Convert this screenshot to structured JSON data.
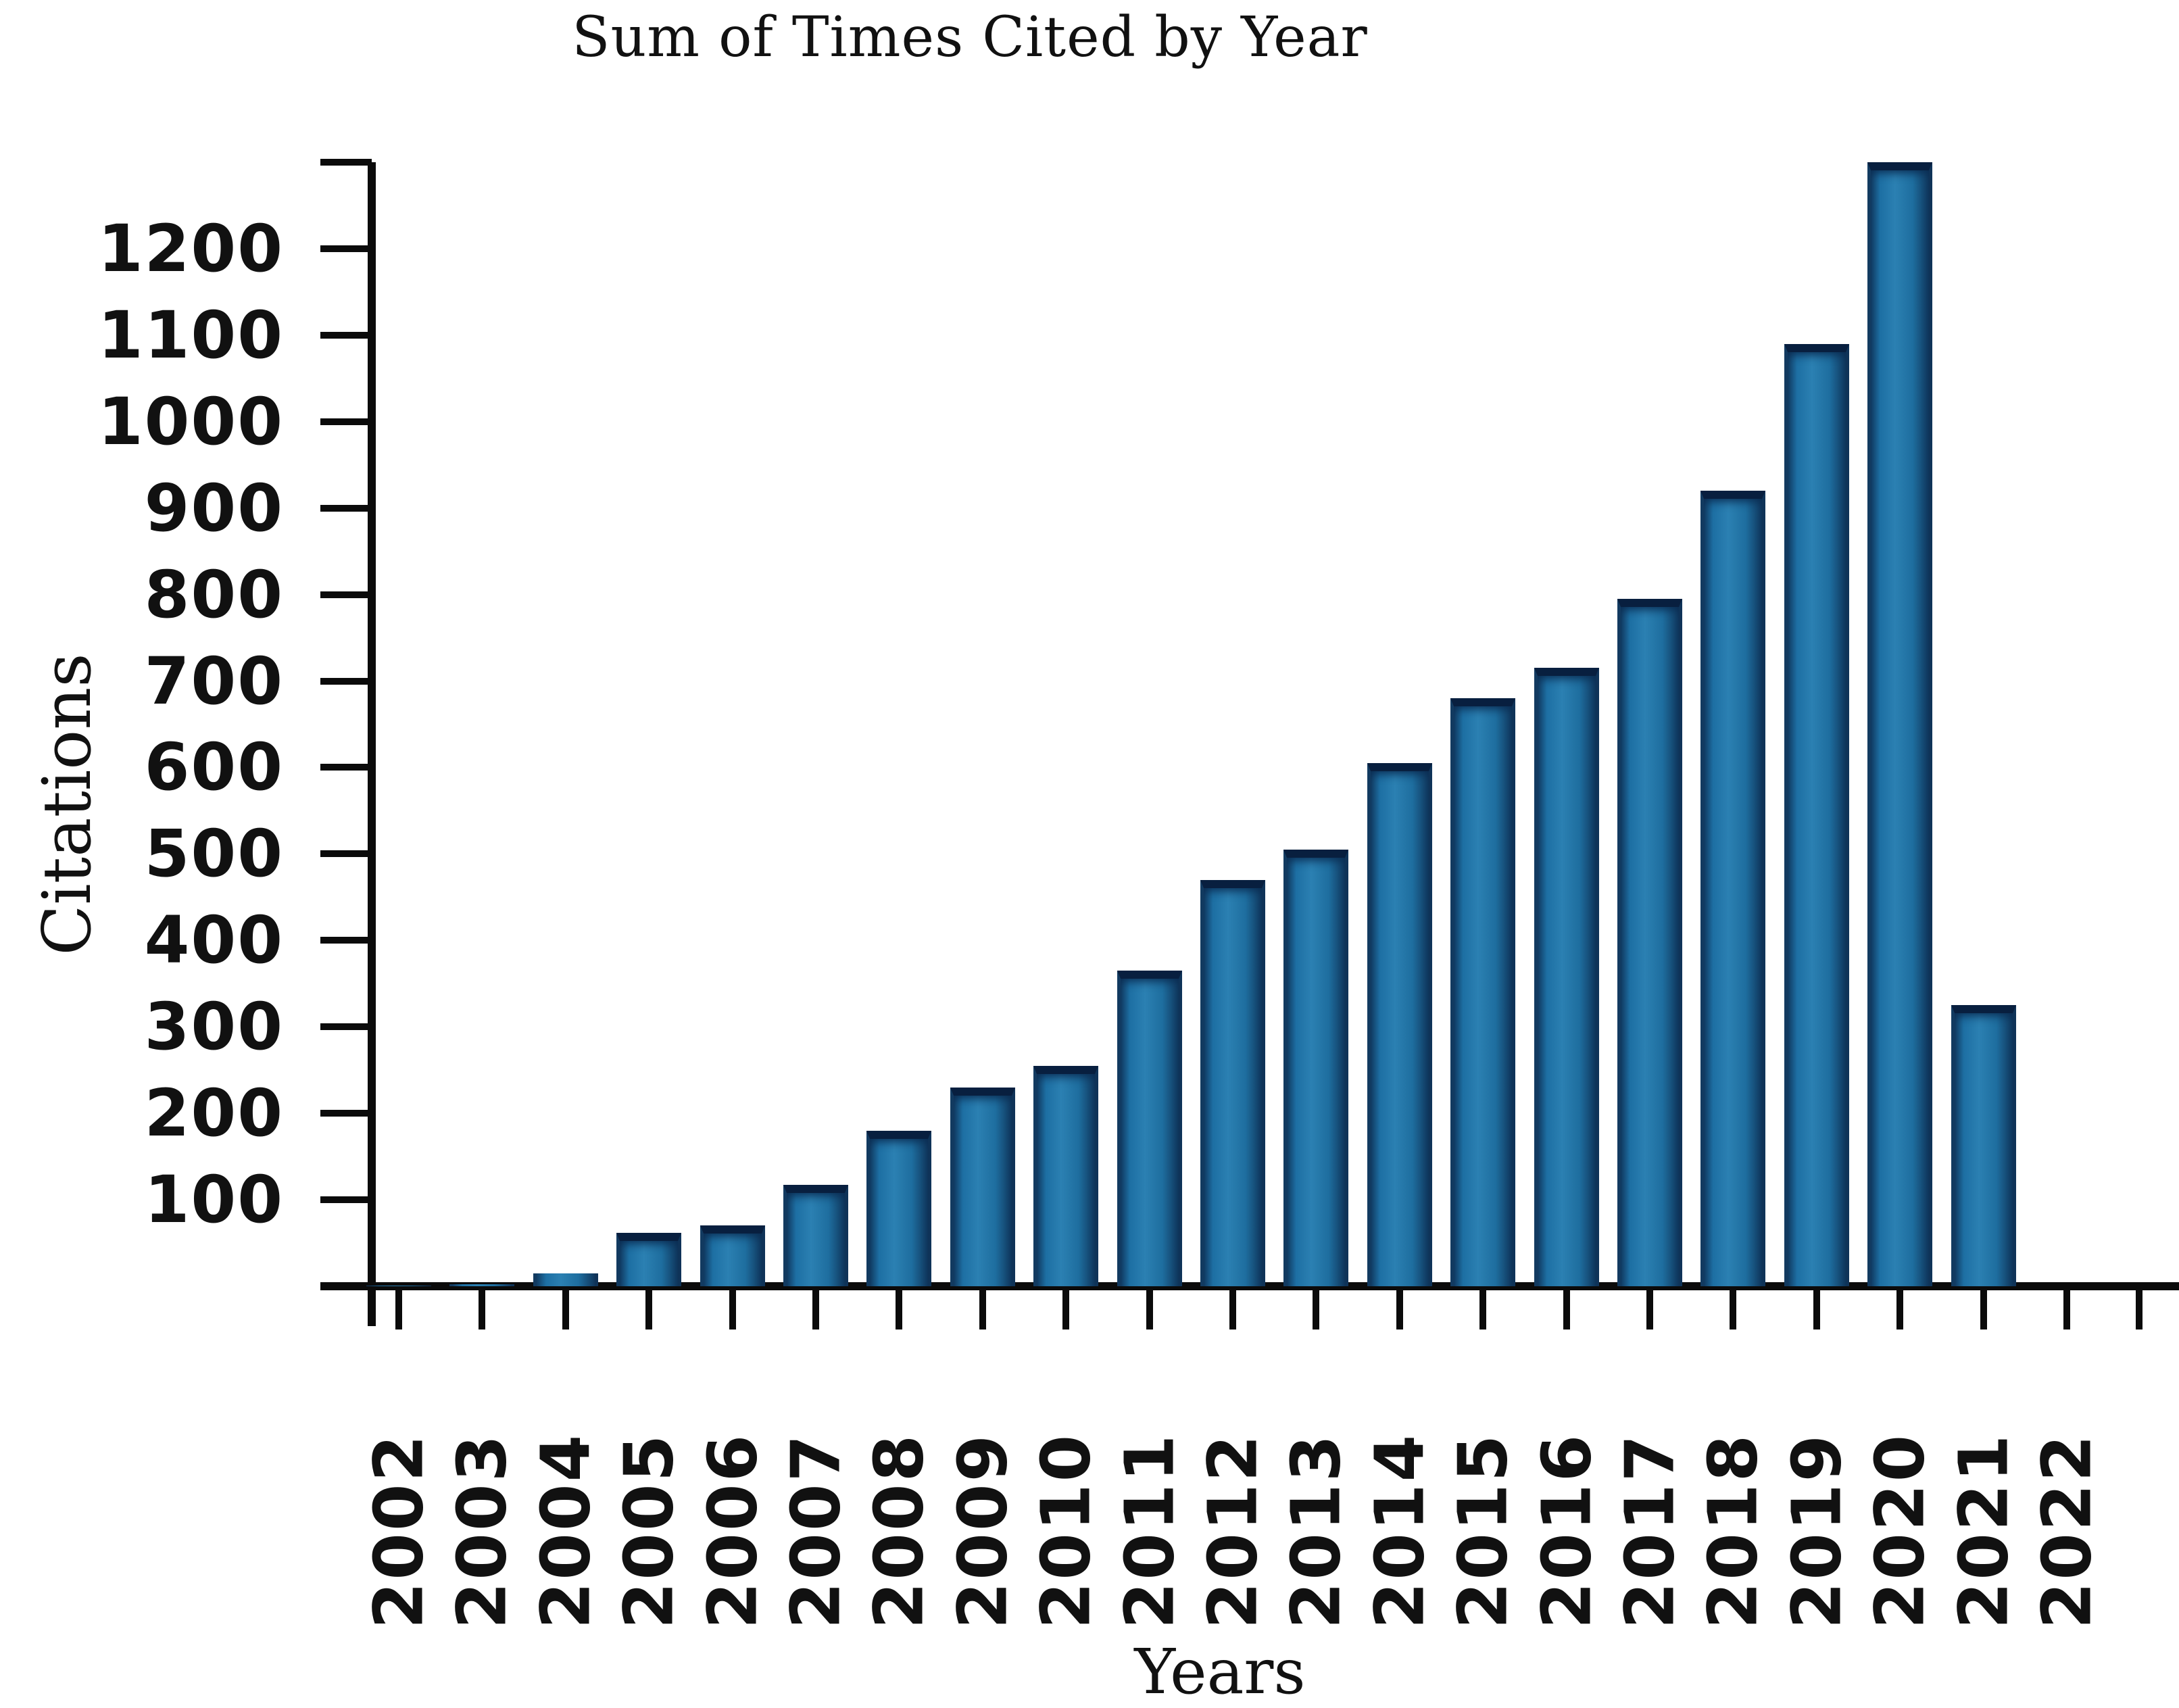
{
  "chart_data": {
    "type": "bar",
    "title": "Sum of Times Cited by Year",
    "xlabel": "Years",
    "ylabel": "Citations",
    "categories": [
      "2002",
      "2003",
      "2004",
      "2005",
      "2006",
      "2007",
      "2008",
      "2009",
      "2010",
      "2011",
      "2012",
      "2013",
      "2014",
      "2015",
      "2016",
      "2017",
      "2018",
      "2019",
      "2020",
      "2021",
      "2022"
    ],
    "values": [
      1,
      2,
      15,
      62,
      70,
      117,
      180,
      230,
      255,
      365,
      470,
      505,
      605,
      680,
      715,
      795,
      920,
      1090,
      1300,
      325,
      0
    ],
    "ylim": [
      0,
      1300
    ],
    "ytick_step": 100,
    "ytick_labels": [
      "100",
      "200",
      "300",
      "400",
      "500",
      "600",
      "700",
      "800",
      "900",
      "1000",
      "1100",
      "1200"
    ],
    "grid": "off",
    "legend": "none",
    "bar_color": "#1d6fa3",
    "bar_edge_color": "#0c2d55",
    "axis_color": "#0b0b0b",
    "background_color": "#ffffff"
  }
}
